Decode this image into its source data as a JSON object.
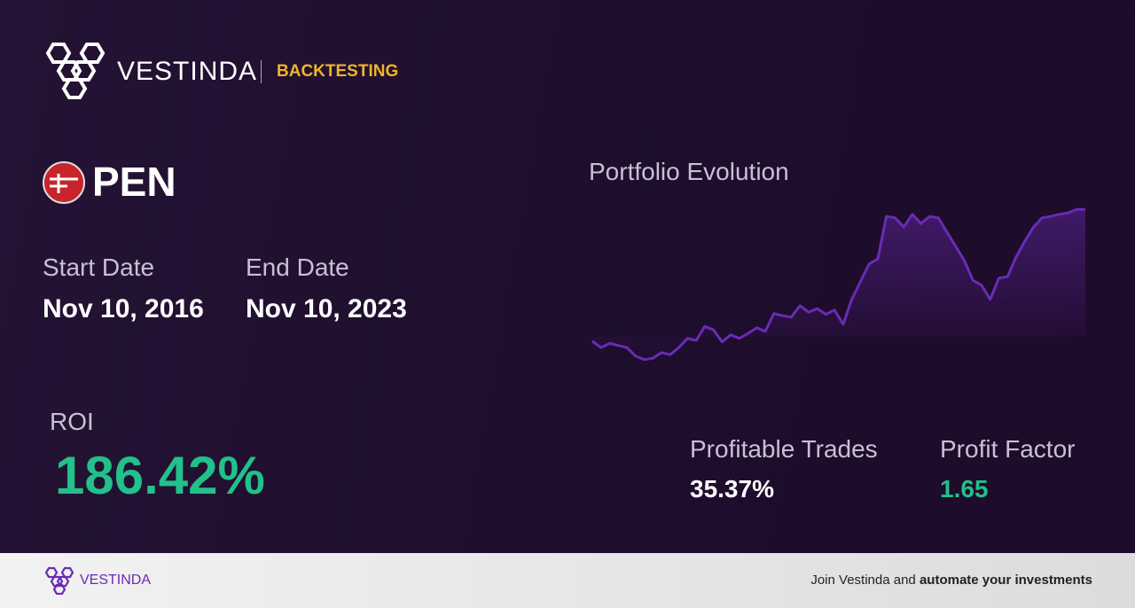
{
  "header": {
    "brand": "VESTINDA",
    "section": "BACKTESTING"
  },
  "asset": {
    "ticker": "PEN"
  },
  "dates": {
    "start_label": "Start Date",
    "start_value": "Nov 10, 2016",
    "end_label": "End Date",
    "end_value": "Nov 10, 2023"
  },
  "metrics": {
    "roi_label": "ROI",
    "roi_value": "186.42%",
    "trades_label": "Profitable Trades",
    "trades_value": "35.37%",
    "factor_label": "Profit Factor",
    "factor_value": "1.65"
  },
  "chart_data": {
    "type": "area",
    "title": "Portfolio Evolution",
    "color": "#6a2bb5",
    "ylim": [
      70,
      290
    ],
    "values": [
      100,
      91,
      97,
      94,
      91,
      79,
      74,
      76,
      84,
      81,
      91,
      104,
      101,
      121,
      116,
      99,
      109,
      104,
      111,
      119,
      114,
      139,
      136,
      134,
      150,
      141,
      146,
      138,
      144,
      124,
      159,
      184,
      209,
      216,
      276,
      274,
      261,
      279,
      266,
      276,
      274,
      254,
      234,
      214,
      186,
      179,
      159,
      189,
      191,
      219,
      241,
      261,
      274,
      276,
      279,
      281,
      286,
      286
    ]
  },
  "footer": {
    "brand": "VESTINDA",
    "text": "Join Vestinda and",
    "cta": "automate your investments"
  }
}
